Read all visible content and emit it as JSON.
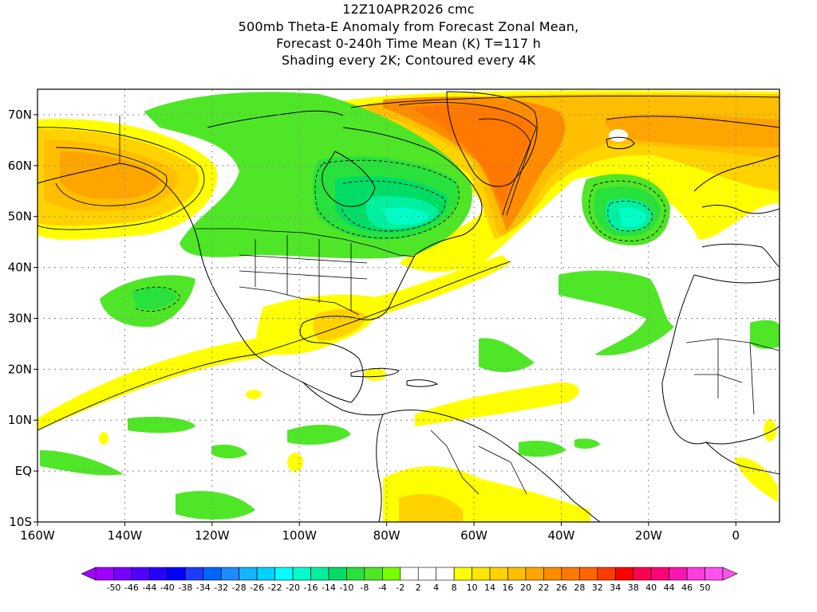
{
  "title": {
    "line1": "12Z10APR2026 cmc",
    "line2": "500mb Theta-E Anomaly from Forecast Zonal Mean,",
    "line3": "Forecast 0-240h Time Mean (K) T=117 h",
    "line4": "Shading every 2K; Contoured every 4K"
  },
  "map": {
    "lat_labels": [
      "70N",
      "60N",
      "50N",
      "40N",
      "30N",
      "20N",
      "10N",
      "EQ",
      "10S"
    ],
    "lon_labels": [
      "160W",
      "140W",
      "120W",
      "100W",
      "80W",
      "60W",
      "40W",
      "20W",
      "0"
    ],
    "lat_range": [
      -10,
      75
    ],
    "lon_range": [
      -160,
      10
    ],
    "grid": "dotted"
  },
  "colorbar": {
    "labels": [
      "-50",
      "-46",
      "-44",
      "-40",
      "-38",
      "-34",
      "-32",
      "-28",
      "-26",
      "-22",
      "-20",
      "-16",
      "-14",
      "-10",
      "-8",
      "-4",
      "-2",
      "2",
      "4",
      "8",
      "10",
      "14",
      "16",
      "20",
      "22",
      "26",
      "28",
      "32",
      "34",
      "38",
      "40",
      "44",
      "46",
      "50"
    ],
    "colors": [
      "#a000ff",
      "#7800ff",
      "#5000ff",
      "#2800ff",
      "#0000ff",
      "#1e3cff",
      "#0064ff",
      "#1e8cff",
      "#14b4ff",
      "#00d2ff",
      "#00ffff",
      "#00ffc8",
      "#00f0a0",
      "#00dc64",
      "#28e13c",
      "#50e628",
      "#78ff00",
      "#ffffff",
      "#ffffff",
      "#ffffff",
      "#ffff00",
      "#ffe600",
      "#ffd200",
      "#ffbe00",
      "#ffa500",
      "#ff8c00",
      "#ff7800",
      "#ff6400",
      "#ff3c00",
      "#ff0000",
      "#ff0050",
      "#ff0078",
      "#ff14b4",
      "#ff3cdc",
      "#ff50f0"
    ]
  },
  "features": [
    {
      "name": "alaska-positive-anomaly",
      "color": "#ffa500"
    },
    {
      "name": "greenland-positive-anomaly",
      "color": "#ff7800"
    },
    {
      "name": "canada-negative-anomaly",
      "color": "#50e628"
    },
    {
      "name": "atlantic-negative-anomaly",
      "color": "#00f0a0"
    },
    {
      "name": "subtropical-positive-band",
      "color": "#ffff00"
    }
  ]
}
